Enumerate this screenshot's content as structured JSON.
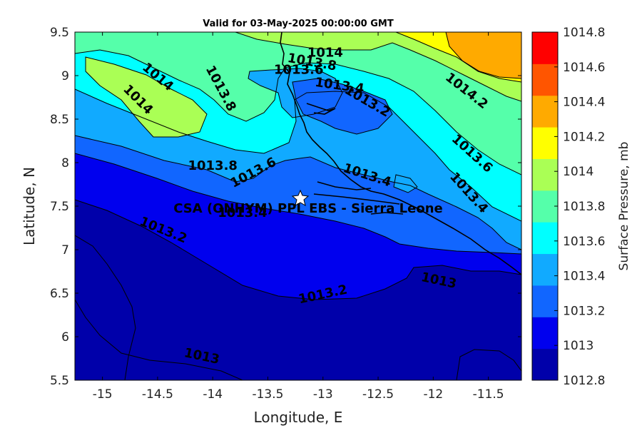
{
  "chart_data": {
    "type": "contour",
    "title": "Valid for 03-May-2025 00:00:00 GMT",
    "xlabel": "Longitude, E",
    "ylabel": "Latitude, N",
    "xlim": [
      -15.25,
      -11.2
    ],
    "ylim": [
      5.5,
      9.5
    ],
    "x_ticks": [
      -15,
      -14.5,
      -14,
      -13.5,
      -13,
      -12.5,
      -12,
      -11.5
    ],
    "x_tick_labels": [
      "-15",
      "-14.5",
      "-14",
      "-13.5",
      "-13",
      "-12.5",
      "-12",
      "-11.5"
    ],
    "y_ticks": [
      5.5,
      6,
      6.5,
      7,
      7.5,
      8,
      8.5,
      9,
      9.5
    ],
    "y_tick_labels": [
      "5.5",
      "6",
      "6.5",
      "7",
      "7.5",
      "8",
      "8.5",
      "9",
      "9.5"
    ],
    "station": {
      "name": "CSA (ONHYM) PPL EBS  - Sierra Leone",
      "lon": -13.25,
      "lat": 7.6
    },
    "contour_labels": [
      {
        "text": "1014",
        "lon": -12.98,
        "lat": 9.26,
        "rot": 0
      },
      {
        "text": "1013.8",
        "lon": -13.1,
        "lat": 9.15,
        "rot": 10
      },
      {
        "text": "1013.6",
        "lon": -13.22,
        "lat": 9.06,
        "rot": 0
      },
      {
        "text": "1013.4",
        "lon": -12.85,
        "lat": 8.88,
        "rot": 8
      },
      {
        "text": "1013.2",
        "lon": -12.6,
        "lat": 8.7,
        "rot": 30
      },
      {
        "text": "1014",
        "lon": -14.5,
        "lat": 8.98,
        "rot": 40
      },
      {
        "text": "1014",
        "lon": -14.68,
        "lat": 8.72,
        "rot": 45
      },
      {
        "text": "1013.8",
        "lon": -13.93,
        "lat": 8.85,
        "rot": 62
      },
      {
        "text": "1014.2",
        "lon": -11.7,
        "lat": 8.82,
        "rot": 38
      },
      {
        "text": "1013.6",
        "lon": -11.65,
        "lat": 8.1,
        "rot": 42
      },
      {
        "text": "1013.4",
        "lon": -11.68,
        "lat": 7.65,
        "rot": 48
      },
      {
        "text": "1013.8",
        "lon": -14.0,
        "lat": 7.96,
        "rot": 0
      },
      {
        "text": "1013.6",
        "lon": -13.63,
        "lat": 7.88,
        "rot": -28
      },
      {
        "text": "1013.4",
        "lon": -12.6,
        "lat": 7.85,
        "rot": 18
      },
      {
        "text": "1013.4",
        "lon": -13.73,
        "lat": 7.42,
        "rot": 0
      },
      {
        "text": "1013.2",
        "lon": -14.45,
        "lat": 7.22,
        "rot": 22
      },
      {
        "text": "1013.2",
        "lon": -13.0,
        "lat": 6.48,
        "rot": -12
      },
      {
        "text": "1013",
        "lon": -11.95,
        "lat": 6.64,
        "rot": 12
      },
      {
        "text": "1013",
        "lon": -14.1,
        "lat": 5.77,
        "rot": 12
      }
    ],
    "colorbar": {
      "label": "Surface Pressure, mb",
      "levels": [
        1012.8,
        1013,
        1013.2,
        1013.4,
        1013.6,
        1013.8,
        1014,
        1014.2,
        1014.4,
        1014.6,
        1014.8
      ],
      "tick_labels": [
        "1012.8",
        "1013",
        "1013.2",
        "1013.4",
        "1013.6",
        "1013.8",
        "1014",
        "1014.2",
        "1014.4",
        "1014.6",
        "1014.8"
      ],
      "colors": [
        "#0000aa",
        "#0000ee",
        "#1166ff",
        "#11aaff",
        "#00ffff",
        "#55ffaa",
        "#aaff55",
        "#ffff00",
        "#ffaa00",
        "#ff5500",
        "#ff0000"
      ]
    }
  }
}
